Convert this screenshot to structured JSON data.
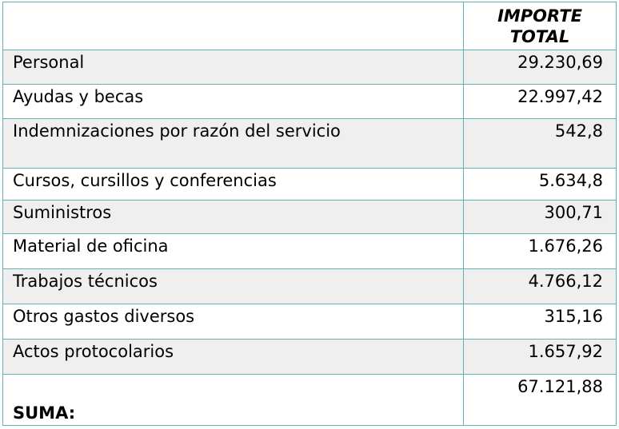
{
  "table": {
    "header": {
      "amount": "IMPORTE TOTAL"
    },
    "rows": [
      [
        "Personal",
        "29.230,69"
      ],
      [
        "Ayudas y becas",
        "22.997,42"
      ],
      [
        "Indemnizaciones por razón del servicio",
        "542,8"
      ],
      [
        "Cursos, cursillos y conferencias",
        "5.634,8"
      ],
      [
        "Suministros",
        "300,71"
      ],
      [
        "Material de oficina",
        "1.676,26"
      ],
      [
        "Trabajos técnicos",
        "4.766,12"
      ],
      [
        "Otros gastos diversos",
        "315,16"
      ],
      [
        "Actos protocolarios",
        "1.657,92"
      ]
    ],
    "total": {
      "label": "SUMA:",
      "value": "67.121,88"
    }
  }
}
